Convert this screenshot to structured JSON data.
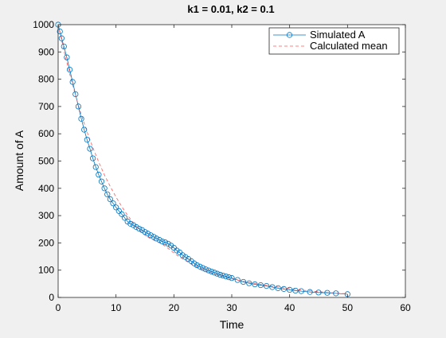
{
  "chart_data": {
    "type": "line",
    "title": "k1 = 0.01, k2 = 0.1",
    "xlabel": "Time",
    "ylabel": "Amount of A",
    "xlim": [
      0,
      60
    ],
    "ylim": [
      0,
      1000
    ],
    "xticks": [
      "0",
      "10",
      "20",
      "30",
      "40",
      "50",
      "60"
    ],
    "yticks": [
      "0",
      "100",
      "200",
      "300",
      "400",
      "500",
      "600",
      "700",
      "800",
      "900",
      "1000"
    ],
    "grid": false,
    "legend_position": "top-right",
    "colors": {
      "simulated": "#0072bd",
      "mean": "#ff5a5a"
    },
    "series": [
      {
        "name": "Simulated A",
        "style": "line-with-circle-markers",
        "x": [
          0,
          0.3,
          0.6,
          1.0,
          1.5,
          2.0,
          2.5,
          3.0,
          3.5,
          4.0,
          4.5,
          5.0,
          5.5,
          6.0,
          6.5,
          7.0,
          7.5,
          8.0,
          8.5,
          9.0,
          9.5,
          10.0,
          10.5,
          11.0,
          11.5,
          12.0,
          12.5,
          13.0,
          13.5,
          14.0,
          14.5,
          15.0,
          15.5,
          16.0,
          16.5,
          17.0,
          17.5,
          18.0,
          18.5,
          19.0,
          19.5,
          20.0,
          20.5,
          21.0,
          21.5,
          22.0,
          22.5,
          23.0,
          23.5,
          24.0,
          24.5,
          25.0,
          25.5,
          26.0,
          26.5,
          27.0,
          27.5,
          28.0,
          28.5,
          29.0,
          29.5,
          30.0,
          31.0,
          32.0,
          33.0,
          34.0,
          35.0,
          36.0,
          37.0,
          38.0,
          39.0,
          40.0,
          41.0,
          42.0,
          43.5,
          45.0,
          46.5,
          48.0,
          50.0
        ],
        "y": [
          1000,
          975,
          950,
          920,
          880,
          835,
          790,
          745,
          700,
          655,
          615,
          578,
          545,
          510,
          478,
          450,
          425,
          400,
          378,
          360,
          345,
          330,
          317,
          305,
          292,
          278,
          270,
          265,
          258,
          252,
          247,
          240,
          234,
          228,
          222,
          216,
          211,
          205,
          202,
          197,
          190,
          182,
          172,
          165,
          155,
          148,
          141,
          133,
          125,
          118,
          113,
          108,
          103,
          99,
          95,
          91,
          87,
          83,
          80,
          77,
          74,
          71,
          64,
          57,
          52,
          48,
          45,
          42,
          38,
          34,
          31,
          28,
          25,
          23,
          20,
          18,
          17,
          15,
          12
        ]
      },
      {
        "name": "Calculated mean",
        "style": "dashed",
        "x": [
          0,
          1,
          2,
          3,
          4,
          5,
          6,
          7,
          8,
          9,
          10,
          11,
          12,
          13,
          14,
          15,
          16,
          17,
          18,
          19,
          20,
          21,
          22,
          23,
          24,
          25,
          26,
          27,
          28,
          29,
          30,
          32,
          34,
          36,
          38,
          40,
          42,
          44,
          46,
          48,
          50
        ],
        "y": [
          1000,
          905,
          819,
          741,
          670,
          607,
          549,
          497,
          449,
          407,
          368,
          333,
          301,
          273,
          248,
          228,
          215,
          205,
          195,
          180,
          163,
          148,
          135,
          122,
          112,
          102,
          94,
          86,
          80,
          74,
          68,
          59,
          51,
          44,
          38,
          32,
          27,
          23,
          19,
          16,
          13
        ]
      }
    ]
  }
}
